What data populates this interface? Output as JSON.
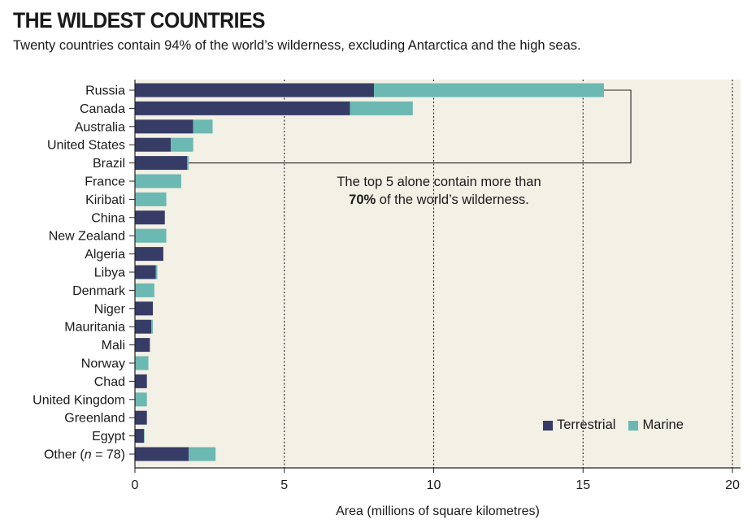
{
  "title": "THE WILDEST COUNTRIES",
  "subtitle": "Twenty countries contain 94% of the world’s wilderness, excluding Antarctica and the high seas.",
  "annotation": {
    "line1": "The top 5 alone contain more than",
    "bold": "70%",
    "line2_rest": " of the world’s wilderness."
  },
  "legend": {
    "terrestrial": "Terrestrial",
    "marine": "Marine"
  },
  "colors": {
    "terrestrial": "#363c66",
    "marine": "#6cb8b2",
    "plot_bg": "#f3f0e6"
  },
  "chart_data": {
    "type": "bar",
    "orientation": "horizontal",
    "stacked": true,
    "categories": [
      "Russia",
      "Canada",
      "Australia",
      "United States",
      "Brazil",
      "France",
      "Kiribati",
      "China",
      "New Zealand",
      "Algeria",
      "Libya",
      "Denmark",
      "Niger",
      "Mauritania",
      "Mali",
      "Norway",
      "Chad",
      "United Kingdom",
      "Greenland",
      "Egypt",
      "Other (n = 78)"
    ],
    "other_label": {
      "prefix": "Other (",
      "italic": "n",
      "suffix": " = 78)"
    },
    "series": [
      {
        "name": "Terrestrial",
        "values": [
          8.0,
          7.2,
          1.95,
          1.2,
          1.75,
          0.0,
          0.0,
          1.0,
          0.0,
          0.95,
          0.7,
          0.0,
          0.6,
          0.55,
          0.5,
          0.0,
          0.4,
          0.0,
          0.4,
          0.3,
          1.8
        ]
      },
      {
        "name": "Marine",
        "values": [
          7.7,
          2.1,
          0.65,
          0.75,
          0.05,
          1.55,
          1.05,
          0.0,
          1.05,
          0.0,
          0.05,
          0.65,
          0.0,
          0.05,
          0.0,
          0.45,
          0.0,
          0.4,
          0.0,
          0.02,
          0.9
        ]
      }
    ],
    "xlabel": "Area (millions of square kilometres)",
    "ylabel": "",
    "xlim": [
      0,
      20
    ],
    "xticks": [
      0,
      5,
      10,
      15,
      20
    ],
    "grid": "dotted vertical at 5, 10, 15, 20",
    "legend_position": "bottom-right",
    "bracket": "groups top 5 (Russia to Brazil)"
  }
}
